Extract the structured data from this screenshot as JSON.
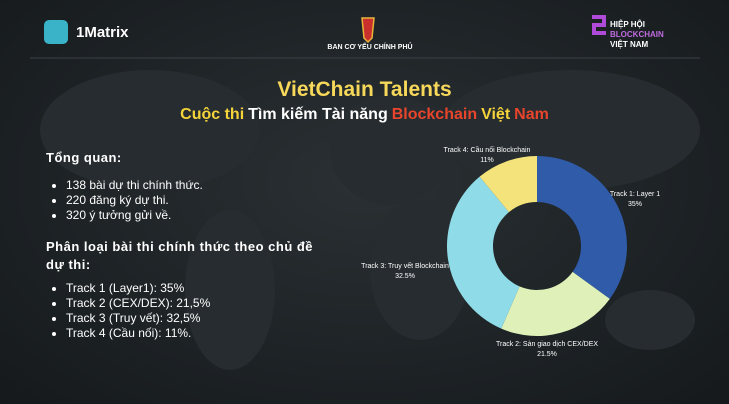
{
  "header": {
    "left_logo": "1Matrix",
    "center_logo": "BAN CƠ YẾU CHÍNH PHỦ",
    "right_logo": [
      "HIỆP HỘI",
      "BLOCKCHAIN",
      "VIỆT NAM"
    ]
  },
  "title": "VietChain Talents",
  "subtitle": [
    {
      "text": "Cuộc thi",
      "color": "#f5d33a"
    },
    {
      "text": "Tìm kiếm Tài năng",
      "color": "#ffffff"
    },
    {
      "text": "Blockchain",
      "color": "#e8452c"
    },
    {
      "text": "Việt",
      "color": "#f5d33a"
    },
    {
      "text": "Nam",
      "color": "#e8452c"
    }
  ],
  "overview": {
    "heading": "Tổng quan:",
    "items": [
      "138 bài dự thi chính thức.",
      "220 đăng ký dự thi.",
      "320 ý tưởng gửi về."
    ]
  },
  "classification": {
    "heading": "Phân loại bài thi chính thức theo chủ đề dự thi:",
    "items": [
      "Track 1 (Layer1): 35%",
      "Track 2 (CEX/DEX): 21,5%",
      "Track 3 (Truy vết): 32,5%",
      "Track 4 (Cầu nối): 11%."
    ]
  },
  "chart_data": {
    "type": "donut",
    "categories": [
      "Track 1: Layer 1",
      "Track 2: Sàn giao dịch CEX/DEX",
      "Track 3: Truy vết Blockchain",
      "Track 4: Cầu nối Blockchain"
    ],
    "values": [
      35,
      21.5,
      32.5,
      11
    ],
    "value_labels": [
      "35%",
      "21.5%",
      "32.5%",
      "11%"
    ],
    "colors": [
      "#2f5ba8",
      "#dff1b8",
      "#8fdce8",
      "#f4e27a"
    ]
  }
}
